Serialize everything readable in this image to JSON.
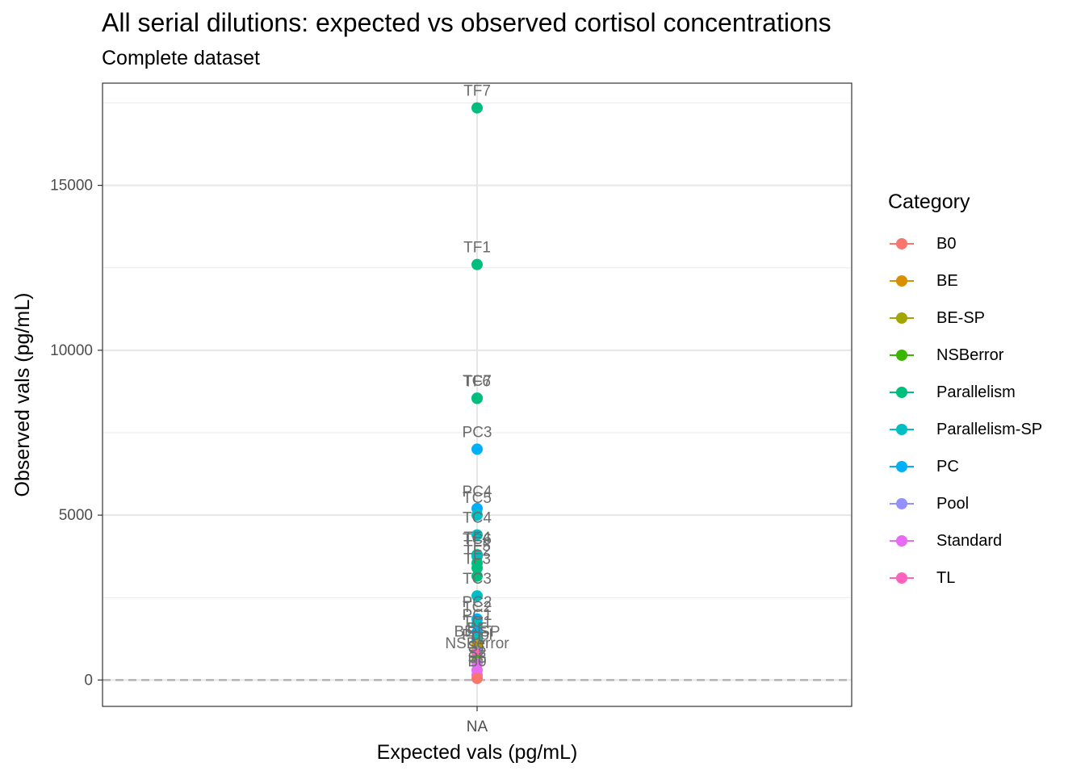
{
  "chart_data": {
    "type": "scatter",
    "title": "All serial dilutions: expected vs observed cortisol concentrations",
    "subtitle": "Complete dataset",
    "xlabel": "Expected vals (pg/mL)",
    "ylabel": "Observed vals (pg/mL)",
    "x_categories": [
      "NA"
    ],
    "y_ticks": [
      0,
      5000,
      10000,
      15000
    ],
    "y_tick_labels": [
      "0",
      "5000",
      "10000",
      "15000"
    ],
    "ylim": [
      -800,
      18100
    ],
    "grid": true,
    "reference_line_y": 0,
    "legend": {
      "title": "Category",
      "position": "right",
      "entries": [
        {
          "name": "B0",
          "color": "#F8766D"
        },
        {
          "name": "BE",
          "color": "#D89000"
        },
        {
          "name": "BE-SP",
          "color": "#A3A500"
        },
        {
          "name": "NSBerror",
          "color": "#39B600"
        },
        {
          "name": "Parallelism",
          "color": "#00BF7D"
        },
        {
          "name": "Parallelism-SP",
          "color": "#00BFC4"
        },
        {
          "name": "PC",
          "color": "#00B0F6"
        },
        {
          "name": "Pool",
          "color": "#9590FF"
        },
        {
          "name": "Standard",
          "color": "#E76BF3"
        },
        {
          "name": "TL",
          "color": "#FF62BC"
        }
      ]
    },
    "points": [
      {
        "label": "TF7",
        "x": "NA",
        "y": 17350,
        "category": "Parallelism"
      },
      {
        "label": "TF1",
        "x": "NA",
        "y": 12600,
        "category": "Parallelism"
      },
      {
        "label": "TC7",
        "x": "NA",
        "y": 8550,
        "category": "Parallelism-SP"
      },
      {
        "label": "TF6",
        "x": "NA",
        "y": 8540,
        "category": "Parallelism"
      },
      {
        "label": "PC3",
        "x": "NA",
        "y": 7000,
        "category": "PC"
      },
      {
        "label": "PC4",
        "x": "NA",
        "y": 5200,
        "category": "PC"
      },
      {
        "label": "TC5",
        "x": "NA",
        "y": 5000,
        "category": "Parallelism-SP"
      },
      {
        "label": "TC4",
        "x": "NA",
        "y": 4400,
        "category": "Parallelism-SP"
      },
      {
        "label": "TF4",
        "x": "NA",
        "y": 3800,
        "category": "Parallelism"
      },
      {
        "label": "TC6",
        "x": "NA",
        "y": 3750,
        "category": "Parallelism-SP"
      },
      {
        "label": "TF5",
        "x": "NA",
        "y": 3550,
        "category": "Parallelism"
      },
      {
        "label": "TF2",
        "x": "NA",
        "y": 3400,
        "category": "Parallelism"
      },
      {
        "label": "TF3",
        "x": "NA",
        "y": 3150,
        "category": "Parallelism"
      },
      {
        "label": "TC3",
        "x": "NA",
        "y": 2550,
        "category": "Parallelism-SP"
      },
      {
        "label": "PC2",
        "x": "NA",
        "y": 1850,
        "category": "PC"
      },
      {
        "label": "TC2",
        "x": "NA",
        "y": 1700,
        "category": "Parallelism-SP"
      },
      {
        "label": "PC1",
        "x": "NA",
        "y": 1450,
        "category": "PC"
      },
      {
        "label": "TC1",
        "x": "NA",
        "y": 1250,
        "category": "Parallelism-SP"
      },
      {
        "label": "BE",
        "x": "NA",
        "y": 1050,
        "category": "BE"
      },
      {
        "label": "BE-SP",
        "x": "NA",
        "y": 950,
        "category": "BE-SP"
      },
      {
        "label": "Pool",
        "x": "NA",
        "y": 850,
        "category": "Pool"
      },
      {
        "label": "TL",
        "x": "NA",
        "y": 800,
        "category": "TL"
      },
      {
        "label": "NSBerror",
        "x": "NA",
        "y": 600,
        "category": "NSBerror"
      },
      {
        "label": "S1",
        "x": "NA",
        "y": 500,
        "category": "Standard"
      },
      {
        "label": "S2",
        "x": "NA",
        "y": 300,
        "category": "Standard"
      },
      {
        "label": "S3",
        "x": "NA",
        "y": 150,
        "category": "Standard"
      },
      {
        "label": "B0",
        "x": "NA",
        "y": 50,
        "category": "B0"
      }
    ]
  }
}
